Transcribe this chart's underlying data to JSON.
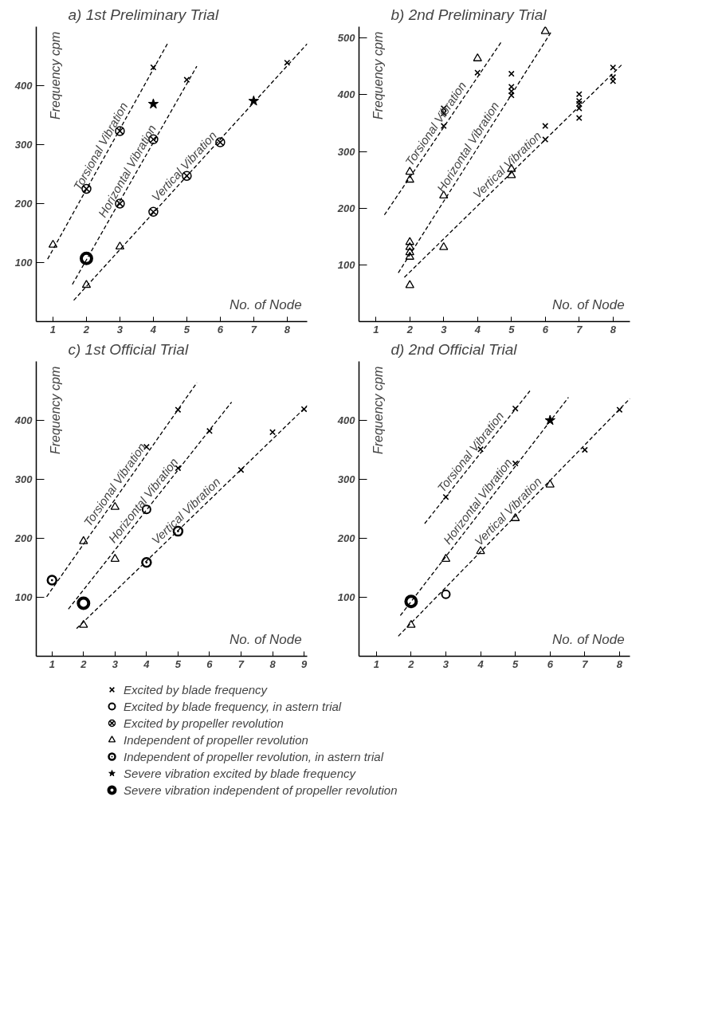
{
  "chart_data": [
    {
      "type": "scatter",
      "title": "a) 1st  Preliminary Trial",
      "xlabel": "No. of Node",
      "ylabel": "Frequency  cpm",
      "xlim": [
        0.5,
        8.6
      ],
      "ylim": [
        0,
        500
      ],
      "xticks": [
        1,
        2,
        3,
        4,
        5,
        6,
        7,
        8
      ],
      "yticks": [
        100,
        200,
        300,
        400
      ],
      "series": [
        {
          "type": "scatter",
          "marker": "cross",
          "color": "#000000",
          "x": [
            4,
            5,
            8
          ],
          "values": [
            431,
            410,
            439
          ]
        },
        {
          "type": "scatter",
          "marker": "star",
          "color": "#000000",
          "x": [
            4,
            7
          ],
          "values": [
            369,
            374
          ]
        },
        {
          "type": "scatter",
          "color": "#000000",
          "x": [
            2,
            3,
            3,
            4,
            4,
            5,
            6
          ],
          "values": [
            225,
            323,
            200,
            309,
            186,
            247,
            304
          ]
        },
        {
          "type": "scatter",
          "marker": "triangle",
          "color": "#000000",
          "x": [
            1,
            2,
            3
          ],
          "values": [
            130,
            62,
            127
          ]
        },
        {
          "type": "scatter",
          "marker": "circle_double",
          "color": "#000000",
          "x": [
            2
          ],
          "values": [
            107
          ]
        },
        {
          "type": "line",
          "line_style": "dashed",
          "color": "#000000",
          "x": [
            0.84,
            4.45
          ],
          "values": [
            106,
            474
          ]
        },
        {
          "type": "line",
          "line_style": "dashed",
          "color": "#000000",
          "x": [
            1.58,
            5.3
          ],
          "values": [
            63,
            433
          ]
        },
        {
          "type": "line",
          "line_style": "dashed",
          "color": "#000000",
          "x": [
            1.62,
            8.6
          ],
          "values": [
            36,
            471
          ]
        }
      ],
      "annotations": [
        "Torsional Vibration",
        "Horizontal Vibration",
        "Vertical Vibration"
      ]
    },
    {
      "type": "scatter",
      "title": "b) 2nd Preliminary Trial",
      "xlabel": "No. of Node",
      "ylabel": "Frequency  cpm",
      "xlim": [
        0.5,
        8.5
      ],
      "ylim": [
        0,
        520
      ],
      "xticks": [
        1,
        2,
        3,
        4,
        5,
        6,
        7,
        8
      ],
      "yticks": [
        100,
        200,
        300,
        400,
        500
      ],
      "series": [
        {
          "type": "scatter",
          "marker": "cross",
          "color": "#000000",
          "x": [
            3,
            3,
            3,
            4,
            5,
            5,
            5,
            5,
            6,
            6,
            7,
            7,
            7,
            7,
            7,
            8,
            8,
            8
          ],
          "values": [
            345,
            367,
            376,
            439,
            437,
            414,
            406,
            399,
            345,
            321,
            401,
            389,
            384,
            376,
            359,
            448,
            431,
            424
          ]
        },
        {
          "type": "scatter",
          "marker": "triangle",
          "color": "#000000",
          "x": [
            2,
            2,
            2,
            2,
            2,
            2,
            2,
            3,
            3,
            4,
            5,
            5,
            6
          ],
          "values": [
            264,
            250,
            140,
            131,
            122,
            114,
            64,
            222,
            131,
            464,
            269,
            258,
            512
          ]
        },
        {
          "type": "line",
          "line_style": "dashed",
          "color": "#000000",
          "x": [
            1.25,
            4.7
          ],
          "values": [
            188,
            493
          ]
        },
        {
          "type": "line",
          "line_style": "dashed",
          "color": "#000000",
          "x": [
            1.66,
            6.2
          ],
          "values": [
            86,
            513
          ]
        },
        {
          "type": "line",
          "line_style": "dashed",
          "color": "#000000",
          "x": [
            1.84,
            8.26
          ],
          "values": [
            78,
            453
          ]
        }
      ],
      "annotations": [
        "Torsional Vibration",
        "Horizontal Vibration",
        "Vertical Vibration"
      ]
    },
    {
      "type": "scatter",
      "title": "c) 1st  Official Trial",
      "xlabel": "No. of Node",
      "ylabel": "Frequency  cpm",
      "xlim": [
        0.5,
        9.1
      ],
      "ylim": [
        0,
        500
      ],
      "xticks": [
        1,
        2,
        3,
        4,
        5,
        6,
        7,
        8,
        9
      ],
      "yticks": [
        100,
        200,
        300,
        400
      ],
      "series": [
        {
          "type": "scatter",
          "marker": "cross",
          "color": "#000000",
          "x": [
            4,
            5,
            5,
            6,
            7,
            8,
            9
          ],
          "values": [
            355,
            418,
            319,
            382,
            316,
            380,
            419
          ]
        },
        {
          "type": "scatter",
          "marker": "circle",
          "color": "#000000",
          "x": [
            4
          ],
          "values": [
            249
          ]
        },
        {
          "type": "scatter",
          "marker": "circle_dot",
          "color": "#000000",
          "x": [
            1,
            4,
            5
          ],
          "values": [
            129,
            159,
            212
          ]
        },
        {
          "type": "scatter",
          "marker": "triangle",
          "color": "#000000",
          "x": [
            2,
            3,
            3,
            2
          ],
          "values": [
            195,
            253,
            165,
            53
          ]
        },
        {
          "type": "scatter",
          "marker": "circle_double",
          "color": "#000000",
          "x": [
            2
          ],
          "values": [
            90
          ]
        },
        {
          "type": "line",
          "line_style": "dashed",
          "color": "#000000",
          "x": [
            0.83,
            5.6
          ],
          "values": [
            101,
            464
          ]
        },
        {
          "type": "line",
          "line_style": "dashed",
          "color": "#000000",
          "x": [
            1.52,
            6.7
          ],
          "values": [
            80,
            431
          ]
        },
        {
          "type": "line",
          "line_style": "dashed",
          "color": "#000000",
          "x": [
            1.78,
            9.1
          ],
          "values": [
            47,
            425
          ]
        }
      ],
      "annotations": [
        "Torsional Vibration",
        "Horizontal Vibration",
        "Vertical Vibration"
      ]
    },
    {
      "type": "scatter",
      "title": "d) 2nd Official Trial",
      "xlabel": "No. of Node",
      "ylabel": "Frequency  cpm",
      "xlim": [
        0.5,
        8.3
      ],
      "ylim": [
        0,
        500
      ],
      "xticks": [
        1,
        2,
        3,
        4,
        5,
        6,
        7,
        8
      ],
      "yticks": [
        100,
        200,
        300,
        400
      ],
      "legend": "bottom",
      "series": [
        {
          "type": "scatter",
          "name": "Excited by blade frequency",
          "marker": "cross",
          "color": "#000000",
          "x": [
            3,
            4,
            5,
            5,
            7,
            8
          ],
          "values": [
            270,
            351,
            420,
            327,
            350,
            418
          ]
        },
        {
          "type": "scatter",
          "name": "Excited by blade frequency, in astern trial",
          "marker": "circle",
          "color": "#000000",
          "x": [
            3
          ],
          "values": [
            105
          ]
        },
        {
          "type": "scatter",
          "name": "Excited by propeller revolution",
          "color": "#000000"
        },
        {
          "type": "scatter",
          "name": "Independent of propeller revolution",
          "marker": "triangle",
          "color": "#000000",
          "x": [
            2,
            3,
            4,
            5,
            6
          ],
          "values": [
            53,
            165,
            178,
            234,
            291
          ]
        },
        {
          "type": "scatter",
          "name": "Independent of propeller revolution, in astern trial",
          "marker": "circle_dot",
          "color": "#000000"
        },
        {
          "type": "scatter",
          "name": "Severe vibration excited by blade frequency",
          "marker": "star",
          "color": "#000000",
          "x": [
            6
          ],
          "values": [
            400
          ]
        },
        {
          "type": "scatter",
          "name": "Severe vibration independent of propeller revolution",
          "marker": "circle_double",
          "color": "#000000",
          "x": [
            2
          ],
          "values": [
            93
          ]
        },
        {
          "type": "line",
          "line_style": "dashed",
          "color": "#000000",
          "x": [
            2.39,
            5.42
          ],
          "values": [
            225,
            450
          ]
        },
        {
          "type": "line",
          "line_style": "dashed",
          "color": "#000000",
          "x": [
            1.69,
            6.53
          ],
          "values": [
            69,
            439
          ]
        },
        {
          "type": "line",
          "line_style": "dashed",
          "color": "#000000",
          "x": [
            1.63,
            8.3
          ],
          "values": [
            34,
            437
          ]
        }
      ],
      "annotations": [
        "Torsional Vibration",
        "Horizontal Vibration",
        "Vertical Vibration"
      ]
    }
  ]
}
